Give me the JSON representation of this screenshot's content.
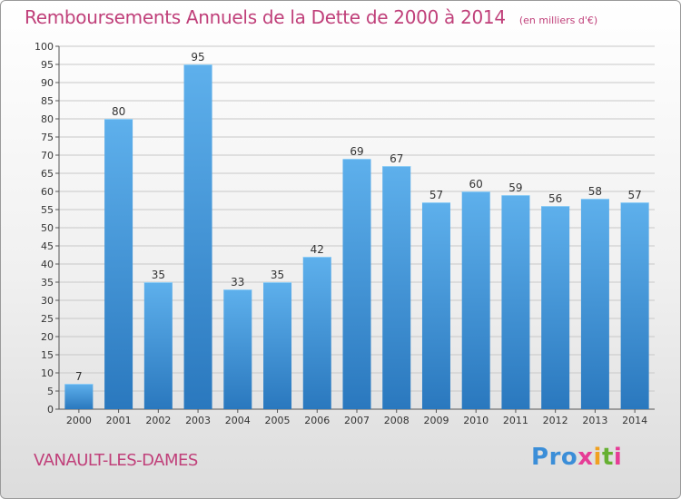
{
  "title": "Remboursements Annuels de la Dette de 2000 à 2014",
  "unit_note": "(en milliers d'€)",
  "commune": "VANAULT-LES-DAMES",
  "logo": {
    "text": "Proxiti",
    "letters": [
      "P",
      "r",
      "o",
      "x",
      "i",
      "t",
      "i"
    ],
    "colors": [
      "#3b8ed8",
      "#3b8ed8",
      "#3b8ed8",
      "#e63c96",
      "#f0a020",
      "#66b032",
      "#e63c96"
    ]
  },
  "colors": {
    "title": "#c0407a",
    "bar_light": "#5eb0ec",
    "bar_dark": "#2a78be",
    "grid": "#c8c8c8"
  },
  "chart_data": {
    "type": "bar",
    "title": "Remboursements Annuels de la Dette de 2000 à 2014",
    "xlabel": "",
    "ylabel": "",
    "ylim": [
      0,
      100
    ],
    "y_ticks": [
      0,
      5,
      10,
      15,
      20,
      25,
      30,
      35,
      40,
      45,
      50,
      55,
      60,
      65,
      70,
      75,
      80,
      85,
      90,
      95,
      100
    ],
    "grid": true,
    "categories": [
      "2000",
      "2001",
      "2002",
      "2003",
      "2004",
      "2005",
      "2006",
      "2007",
      "2008",
      "2009",
      "2010",
      "2011",
      "2012",
      "2013",
      "2014"
    ],
    "values": [
      7,
      80,
      35,
      95,
      33,
      35,
      42,
      69,
      67,
      57,
      60,
      59,
      56,
      58,
      57
    ]
  }
}
